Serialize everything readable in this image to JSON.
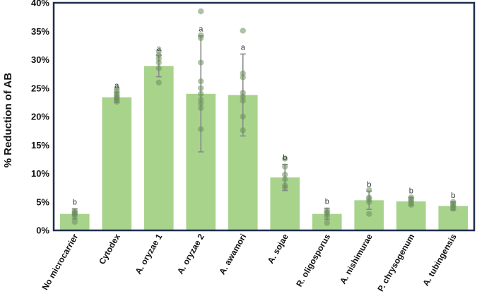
{
  "chart_data": {
    "type": "bar",
    "ylabel": "% Reduction of AB",
    "ylim": [
      0,
      40
    ],
    "yticks": [
      "0%",
      "5%",
      "10%",
      "15%",
      "20%",
      "25%",
      "30%",
      "35%",
      "40%"
    ],
    "categories": [
      "No microcarrier",
      "Cytodex",
      "A. oryzae 1",
      "A. oryzae 2",
      "A. awamori",
      "A. sojae",
      "R. oligosporus",
      "A. nishimurae",
      "P. chrysogenum",
      "A. tubingensis"
    ],
    "values": [
      2.9,
      23.4,
      28.9,
      24.0,
      23.8,
      9.3,
      2.9,
      5.3,
      5.1,
      4.3
    ],
    "errors": [
      0.9,
      0.9,
      1.9,
      10.2,
      7.2,
      2.3,
      1.0,
      1.6,
      0.7,
      0.7
    ],
    "significance": [
      "b",
      "a",
      "a",
      "a",
      "a",
      "b",
      "b",
      "b",
      "b",
      "b"
    ],
    "points": [
      [
        1.5,
        2.5,
        2.8,
        3.0,
        3.2,
        3.4
      ],
      [
        22.6,
        22.9,
        23.2,
        23.4,
        23.7,
        24.0,
        24.5,
        25.0
      ],
      [
        26.0,
        28.5,
        29.5,
        30.2,
        30.8,
        31.5
      ],
      [
        17.8,
        21.5,
        22.3,
        23.0,
        24.0,
        25.0,
        26.2,
        29.5,
        33.8,
        34.3,
        38.5
      ],
      [
        17.6,
        20.0,
        22.8,
        23.5,
        24.2,
        26.9,
        27.6,
        35.1
      ],
      [
        7.5,
        7.9,
        9.0,
        9.8,
        11.2,
        12.6
      ],
      [
        1.3,
        2.4,
        2.9,
        3.2,
        3.5
      ],
      [
        2.9,
        5.0,
        5.5,
        5.8,
        7.1
      ],
      [
        4.5,
        4.9,
        5.2,
        5.5,
        5.8
      ],
      [
        3.8,
        4.1,
        4.4,
        4.7,
        5.0
      ]
    ],
    "bar_color": "#a8d38b",
    "point_color": "#6b8f5f",
    "error_color": "#8a8a8a",
    "frame_color": "#1f2d4d",
    "grid": false,
    "legend": "none"
  }
}
